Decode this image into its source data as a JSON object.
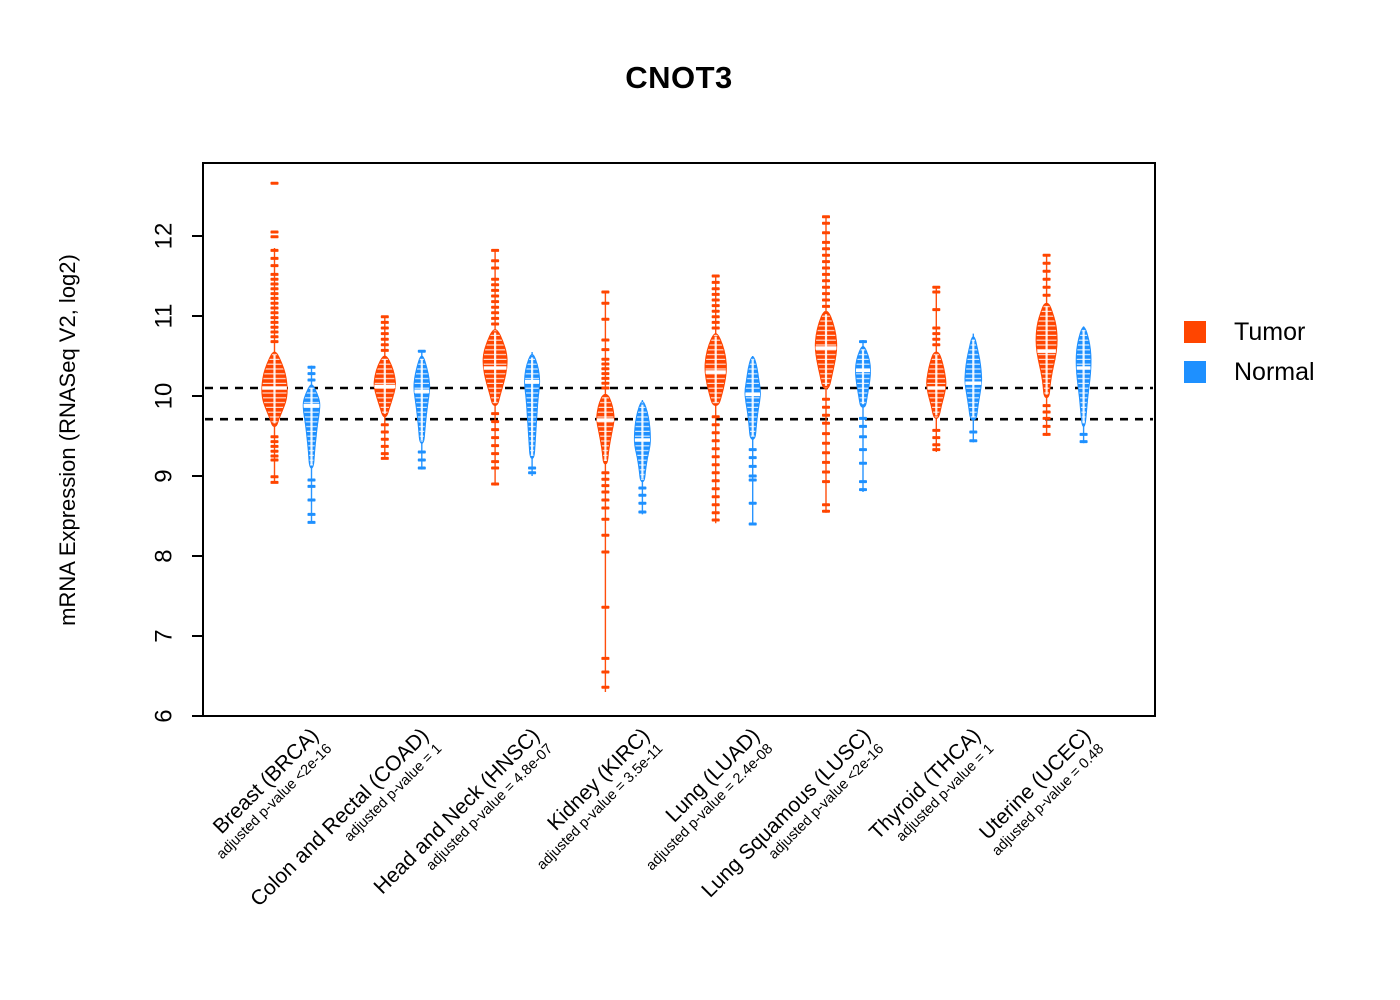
{
  "chart_data": {
    "type": "violin-beeswarm",
    "title": "CNOT3",
    "ylabel": "mRNA Expression (RNASeq V2, log2)",
    "yticks": [
      6,
      7,
      8,
      9,
      10,
      11,
      12
    ],
    "ylim": [
      6,
      12.9
    ],
    "grid": false,
    "reference_lines": [
      10.1,
      9.71
    ],
    "reference_line_style": "dotted-black",
    "legend": [
      {
        "label": "Tumor",
        "color": "#FF4500"
      },
      {
        "label": "Normal",
        "color": "#1E90FF"
      }
    ],
    "categories": [
      {
        "label": "Breast (BRCA)",
        "pvalue": "adjusted p-value <2e-16",
        "groups": [
          {
            "series": "Tumor",
            "median": 10.1,
            "body": [
              [
                10.55,
                2
              ],
              [
                10.42,
                7
              ],
              [
                10.28,
                11
              ],
              [
                10.1,
                13
              ],
              [
                9.95,
                12
              ],
              [
                9.82,
                8
              ],
              [
                9.7,
                4
              ],
              [
                9.62,
                2
              ]
            ],
            "points_high": [
              12.66,
              12.05,
              11.99,
              11.82,
              11.72,
              11.63,
              11.52,
              11.46,
              11.4,
              11.34,
              11.28,
              11.22,
              11.16,
              11.1,
              11.04,
              10.98,
              10.92,
              10.86,
              10.8,
              10.74,
              10.68
            ],
            "points_low": [
              9.49,
              9.43,
              9.37,
              9.31,
              9.25,
              9.2,
              8.99,
              8.92
            ],
            "stem": [
              8.92,
              11.85
            ]
          },
          {
            "series": "Normal",
            "median": 9.88,
            "body": [
              [
                10.14,
                1.5
              ],
              [
                10.02,
                6
              ],
              [
                9.92,
                8.5
              ],
              [
                9.8,
                8
              ],
              [
                9.65,
                6
              ],
              [
                9.48,
                4.5
              ],
              [
                9.3,
                3
              ],
              [
                9.1,
                2
              ]
            ],
            "points_high": [
              10.36,
              10.28,
              10.2
            ],
            "points_low": [
              8.95,
              8.87,
              8.7,
              8.52,
              8.42
            ],
            "stem": [
              8.42,
              10.38
            ]
          }
        ]
      },
      {
        "label": "Colon and Rectal (COAD)",
        "pvalue": "adjusted p-value = 1",
        "groups": [
          {
            "series": "Tumor",
            "median": 10.12,
            "body": [
              [
                10.5,
                2
              ],
              [
                10.38,
                7
              ],
              [
                10.25,
                10
              ],
              [
                10.12,
                11
              ],
              [
                9.98,
                8
              ],
              [
                9.85,
                4.5
              ],
              [
                9.74,
                2
              ]
            ],
            "points_high": [
              10.99,
              10.92,
              10.85,
              10.78,
              10.71,
              10.64,
              10.57
            ],
            "points_low": [
              9.64,
              9.55,
              9.46,
              9.37,
              9.28,
              9.22
            ],
            "stem": [
              9.22,
              11.0
            ]
          },
          {
            "series": "Normal",
            "median": 10.06,
            "body": [
              [
                10.5,
                1.5
              ],
              [
                10.36,
                5
              ],
              [
                10.21,
                7.5
              ],
              [
                10.08,
                8
              ],
              [
                9.95,
                6.5
              ],
              [
                9.76,
                4.5
              ],
              [
                9.56,
                3
              ],
              [
                9.41,
                2
              ]
            ],
            "points_high": [
              10.56
            ],
            "points_low": [
              9.3,
              9.2,
              9.1
            ],
            "stem": [
              9.08,
              10.55
            ]
          }
        ]
      },
      {
        "label": "Head and Neck (HNSC)",
        "pvalue": "adjusted p-value = 4.8e-07",
        "groups": [
          {
            "series": "Tumor",
            "median": 10.35,
            "body": [
              [
                10.83,
                2.5
              ],
              [
                10.68,
                8
              ],
              [
                10.52,
                12
              ],
              [
                10.35,
                12
              ],
              [
                10.18,
                9
              ],
              [
                10.01,
                5
              ],
              [
                9.88,
                2.5
              ]
            ],
            "points_high": [
              11.82,
              11.69,
              11.6,
              11.46,
              11.39,
              11.32,
              11.25,
              11.18,
              11.11,
              11.04,
              10.97,
              10.9
            ],
            "points_low": [
              9.78,
              9.68,
              9.58,
              9.48,
              9.38,
              9.28,
              9.18,
              9.1,
              8.9
            ],
            "stem": [
              8.88,
              11.82
            ]
          },
          {
            "series": "Normal",
            "median": 10.18,
            "body": [
              [
                10.52,
                1.5
              ],
              [
                10.39,
                5.5
              ],
              [
                10.25,
                7.5
              ],
              [
                10.12,
                7.5
              ],
              [
                9.98,
                6
              ],
              [
                9.8,
                5
              ],
              [
                9.6,
                4
              ],
              [
                9.4,
                3
              ],
              [
                9.22,
                2
              ]
            ],
            "points_high": [],
            "points_low": [
              9.1,
              9.04
            ],
            "stem": [
              9.0,
              10.55
            ]
          }
        ]
      },
      {
        "label": "Kidney (KIRC)",
        "pvalue": "adjusted p-value = 3.5e-11",
        "groups": [
          {
            "series": "Tumor",
            "median": 9.7,
            "body": [
              [
                10.02,
                2.5
              ],
              [
                9.92,
                6
              ],
              [
                9.82,
                8
              ],
              [
                9.7,
                9
              ],
              [
                9.58,
                7
              ],
              [
                9.45,
                5
              ],
              [
                9.3,
                3
              ],
              [
                9.15,
                2
              ]
            ],
            "points_high": [
              11.3,
              11.16,
              10.96,
              10.7,
              10.58,
              10.46,
              10.4,
              10.34,
              10.28,
              10.22,
              10.16,
              10.1
            ],
            "points_low": [
              9.04,
              8.96,
              8.88,
              8.8,
              8.7,
              8.6,
              8.46,
              8.26,
              8.05,
              7.36,
              6.72,
              6.55,
              6.36
            ],
            "stem": [
              6.3,
              11.3
            ]
          },
          {
            "series": "Normal",
            "median": 9.45,
            "body": [
              [
                9.93,
                1.5
              ],
              [
                9.8,
                5
              ],
              [
                9.67,
                7
              ],
              [
                9.53,
                8
              ],
              [
                9.39,
                8
              ],
              [
                9.23,
                5
              ],
              [
                9.06,
                3
              ],
              [
                8.93,
                2
              ]
            ],
            "points_high": [],
            "points_low": [
              8.85,
              8.76,
              8.66,
              8.55
            ],
            "stem": [
              8.52,
              9.95
            ]
          }
        ]
      },
      {
        "label": "Lung (LUAD)",
        "pvalue": "adjusted p-value = 2.4e-08",
        "groups": [
          {
            "series": "Tumor",
            "median": 10.3,
            "body": [
              [
                10.78,
                2
              ],
              [
                10.64,
                7
              ],
              [
                10.49,
                10
              ],
              [
                10.33,
                11
              ],
              [
                10.16,
                9
              ],
              [
                10.01,
                6
              ],
              [
                9.88,
                3
              ]
            ],
            "points_high": [
              11.5,
              11.42,
              11.34,
              11.27,
              11.2,
              11.13,
              11.06,
              10.99,
              10.92,
              10.85
            ],
            "points_low": [
              9.74,
              9.64,
              9.54,
              9.44,
              9.34,
              9.24,
              9.14,
              9.04,
              8.94,
              8.84,
              8.74,
              8.64,
              8.54,
              8.45
            ],
            "stem": [
              8.41,
              11.5
            ]
          },
          {
            "series": "Normal",
            "median": 10.02,
            "body": [
              [
                10.49,
                1.5
              ],
              [
                10.35,
                4.5
              ],
              [
                10.21,
                6
              ],
              [
                10.06,
                8
              ],
              [
                9.93,
                7
              ],
              [
                9.79,
                5
              ],
              [
                9.61,
                3.5
              ],
              [
                9.46,
                2.5
              ]
            ],
            "points_high": [],
            "points_low": [
              9.33,
              9.23,
              9.12,
              9.0,
              8.95,
              8.66,
              8.4
            ],
            "stem": [
              8.39,
              10.5
            ]
          }
        ]
      },
      {
        "label": "Lung Squamous (LUSC)",
        "pvalue": "adjusted p-value <2e-16",
        "groups": [
          {
            "series": "Tumor",
            "median": 10.6,
            "body": [
              [
                11.06,
                2.5
              ],
              [
                10.92,
                7
              ],
              [
                10.77,
                10
              ],
              [
                10.6,
                11
              ],
              [
                10.43,
                9
              ],
              [
                10.26,
                6
              ],
              [
                10.09,
                3
              ]
            ],
            "points_high": [
              12.24,
              12.16,
              12.04,
              11.92,
              11.84,
              11.76,
              11.68,
              11.6,
              11.52,
              11.44,
              11.36,
              11.28,
              11.2,
              11.12
            ],
            "points_low": [
              9.96,
              9.86,
              9.76,
              9.66,
              9.53,
              9.41,
              9.29,
              9.17,
              9.05,
              8.93,
              8.64,
              8.56
            ],
            "stem": [
              8.54,
              12.25
            ]
          },
          {
            "series": "Normal",
            "median": 10.32,
            "body": [
              [
                10.62,
                1.5
              ],
              [
                10.5,
                5.5
              ],
              [
                10.38,
                7.5
              ],
              [
                10.26,
                7.5
              ],
              [
                10.12,
                6
              ],
              [
                9.98,
                4
              ],
              [
                9.86,
                2.5
              ]
            ],
            "points_high": [
              10.68
            ],
            "points_low": [
              9.72,
              9.62,
              9.49,
              9.33,
              9.16,
              8.93,
              8.83
            ],
            "stem": [
              8.8,
              10.7
            ]
          }
        ]
      },
      {
        "label": "Thyroid (THCA)",
        "pvalue": "adjusted p-value = 1",
        "groups": [
          {
            "series": "Tumor",
            "median": 10.1,
            "body": [
              [
                10.55,
                2.5
              ],
              [
                10.43,
                6
              ],
              [
                10.29,
                8.5
              ],
              [
                10.15,
                10
              ],
              [
                10.01,
                8
              ],
              [
                9.88,
                5
              ],
              [
                9.72,
                2.5
              ]
            ],
            "points_high": [
              11.36,
              11.3,
              11.08,
              10.85,
              10.78,
              10.71,
              10.64
            ],
            "points_low": [
              9.57,
              9.48,
              9.39,
              9.33
            ],
            "stem": [
              9.3,
              11.37
            ]
          },
          {
            "series": "Normal",
            "median": 10.16,
            "body": [
              [
                10.74,
                1.5
              ],
              [
                10.6,
                4
              ],
              [
                10.46,
                6.5
              ],
              [
                10.31,
                8
              ],
              [
                10.17,
                8.5
              ],
              [
                10.01,
                6.5
              ],
              [
                9.86,
                4.5
              ],
              [
                9.7,
                3
              ]
            ],
            "points_high": [],
            "points_low": [
              9.55,
              9.44
            ],
            "stem": [
              9.42,
              10.78
            ]
          }
        ]
      },
      {
        "label": "Uterine (UCEC)",
        "pvalue": "adjusted p-value = 0.48",
        "groups": [
          {
            "series": "Tumor",
            "median": 10.56,
            "body": [
              [
                11.16,
                2.5
              ],
              [
                11.04,
                6
              ],
              [
                10.92,
                9
              ],
              [
                10.78,
                10.5
              ],
              [
                10.62,
                10.5
              ],
              [
                10.46,
                8.5
              ],
              [
                10.3,
                5.5
              ],
              [
                10.14,
                3.5
              ],
              [
                9.98,
                2.5
              ]
            ],
            "points_high": [
              11.76,
              11.66,
              11.56,
              11.46,
              11.36,
              11.26
            ],
            "points_low": [
              9.88,
              9.8,
              9.72,
              9.62,
              9.52
            ],
            "stem": [
              9.5,
              11.77
            ]
          },
          {
            "series": "Normal",
            "median": 10.35,
            "body": [
              [
                10.86,
                1.5
              ],
              [
                10.72,
                5
              ],
              [
                10.58,
                7
              ],
              [
                10.44,
                7.5
              ],
              [
                10.28,
                7
              ],
              [
                10.12,
                5.5
              ],
              [
                9.97,
                4
              ],
              [
                9.82,
                3
              ],
              [
                9.62,
                1.5
              ]
            ],
            "points_high": [],
            "points_low": [
              9.52,
              9.43
            ],
            "stem": [
              9.41,
              10.87
            ]
          }
        ]
      }
    ]
  }
}
